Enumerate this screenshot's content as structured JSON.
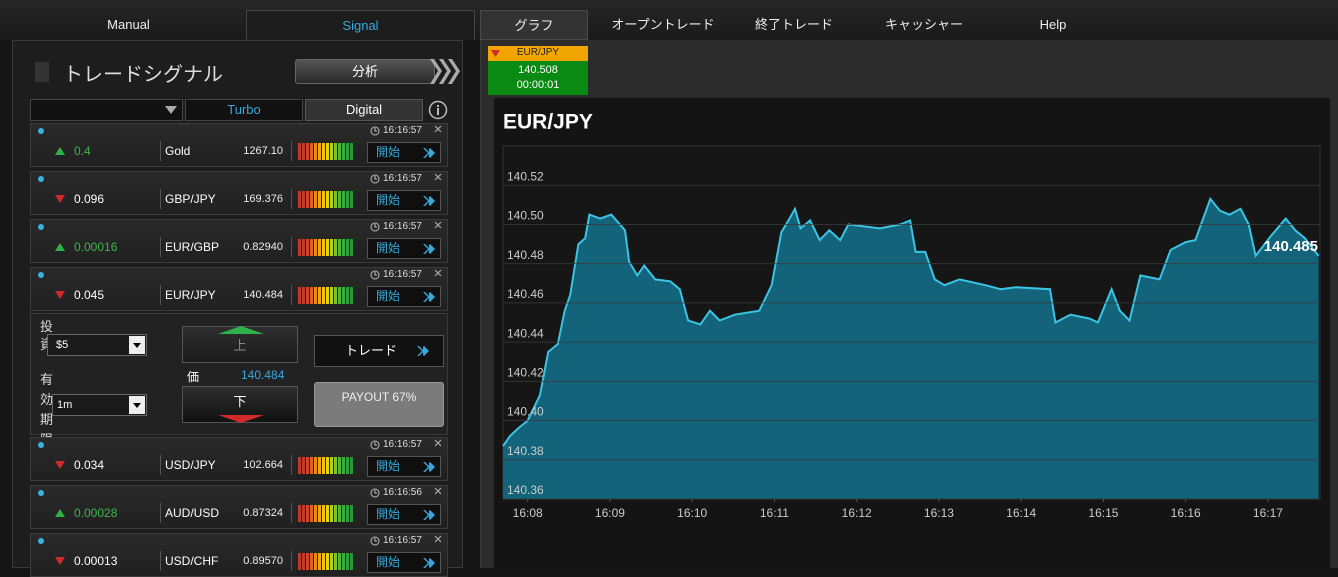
{
  "nav": {
    "tabs": [
      "Manual",
      "Signal",
      "グラフ",
      "オープントレード",
      "終了トレード",
      "キャッシャー",
      "Help"
    ]
  },
  "signals_panel": {
    "title": "トレードシグナル",
    "analyze_button": "分析",
    "tabs": [
      "Turbo",
      "Digital"
    ],
    "rows": [
      {
        "time": "16:16:57",
        "direction": "up",
        "change": "0.4",
        "symbol": "Gold",
        "price": "1267.10",
        "button": "開始"
      },
      {
        "time": "16:16:57",
        "direction": "down",
        "change": "0.096",
        "symbol": "GBP/JPY",
        "price": "169.376",
        "button": "開始"
      },
      {
        "time": "16:16:57",
        "direction": "up",
        "change": "0.00016",
        "symbol": "EUR/GBP",
        "price": "0.82940",
        "button": "開始"
      },
      {
        "time": "16:16:57",
        "direction": "down",
        "change": "0.045",
        "symbol": "EUR/JPY",
        "price": "140.484",
        "button": "開始",
        "expanded": true
      },
      {
        "time": "16:16:57",
        "direction": "down",
        "change": "0.034",
        "symbol": "USD/JPY",
        "price": "102.664",
        "button": "開始"
      },
      {
        "time": "16:16:56",
        "direction": "up",
        "change": "0.00028",
        "symbol": "AUD/USD",
        "price": "0.87324",
        "button": "開始"
      },
      {
        "time": "16:16:57",
        "direction": "down",
        "change": "0.00013",
        "symbol": "USD/CHF",
        "price": "0.89570",
        "button": "開始"
      }
    ],
    "trade_form": {
      "invest_label": "投資",
      "amount": "$5",
      "expiry_label": "有効期限",
      "expiry": "1m",
      "up_button": "上",
      "price_label": "価",
      "price": "140.484",
      "down_button": "下",
      "trade_button": "トレード",
      "payout": "PAYOUT 67%"
    }
  },
  "ticker": {
    "symbol": "EUR/JPY",
    "price": "140.508",
    "timer": "00:00:01"
  },
  "chart_data": {
    "type": "area",
    "title": "EUR/JPY",
    "annotation": "140.485",
    "x": [
      "16:07:42",
      "16:07:47",
      "16:07:53",
      "16:08:00",
      "16:08:09",
      "16:08:15",
      "16:08:22",
      "16:08:27",
      "16:08:31",
      "16:08:37",
      "16:08:42",
      "16:08:45",
      "16:08:53",
      "16:09:01",
      "16:09:11",
      "16:09:14",
      "16:09:20",
      "16:09:25",
      "16:09:33",
      "16:09:44",
      "16:09:51",
      "16:09:57",
      "16:10:06",
      "16:10:13",
      "16:10:20",
      "16:10:31",
      "16:10:49",
      "16:10:58",
      "16:11:05",
      "16:11:11",
      "16:11:15",
      "16:11:19",
      "16:11:26",
      "16:11:33",
      "16:11:40",
      "16:11:48",
      "16:11:54",
      "16:12:17",
      "16:12:32",
      "16:12:39",
      "16:12:43",
      "16:12:50",
      "16:12:57",
      "16:13:04",
      "16:13:15",
      "16:13:34",
      "16:13:45",
      "16:13:56",
      "16:14:21",
      "16:14:25",
      "16:14:36",
      "16:14:50",
      "16:14:56",
      "16:15:06",
      "16:15:12",
      "16:15:19",
      "16:15:27",
      "16:15:41",
      "16:15:49",
      "16:16:00",
      "16:16:07",
      "16:16:18",
      "16:16:25",
      "16:16:32",
      "16:16:40",
      "16:16:46",
      "16:16:51",
      "16:17:02",
      "16:17:13",
      "16:17:20",
      "16:17:27",
      "16:17:37"
    ],
    "values": [
      140.387,
      140.392,
      140.396,
      140.4,
      140.413,
      140.435,
      140.439,
      140.456,
      140.464,
      140.49,
      140.493,
      140.505,
      140.503,
      140.505,
      140.497,
      140.481,
      140.474,
      140.479,
      140.472,
      140.471,
      140.467,
      140.451,
      140.449,
      140.456,
      140.451,
      140.454,
      140.456,
      140.469,
      140.496,
      140.503,
      140.508,
      140.498,
      140.502,
      140.492,
      140.497,
      140.492,
      140.5,
      140.498,
      140.5,
      140.502,
      140.486,
      140.486,
      140.472,
      140.469,
      140.472,
      140.469,
      140.467,
      140.468,
      140.467,
      140.45,
      140.454,
      140.452,
      140.45,
      140.467,
      140.456,
      140.451,
      140.474,
      140.472,
      140.487,
      140.491,
      140.492,
      140.513,
      140.507,
      140.505,
      140.508,
      140.5,
      140.484,
      140.494,
      140.503,
      140.497,
      140.493,
      140.484
    ],
    "xlim": [
      "16:07:42",
      "16:17:38"
    ],
    "xticks": [
      "16:08",
      "16:09",
      "16:10",
      "16:11",
      "16:12",
      "16:13",
      "16:14",
      "16:15",
      "16:16",
      "16:17"
    ],
    "ylim": [
      140.36,
      140.54
    ],
    "yticks": [
      140.36,
      140.38,
      {
        "value": 140.4,
        "label": "140.40"
      },
      140.42,
      140.44,
      140.46,
      140.48,
      {
        "value": 140.5,
        "label": "140.50"
      },
      140.52
    ],
    "color": "#3cc4e4",
    "fill": "#13647a",
    "grid": true
  }
}
